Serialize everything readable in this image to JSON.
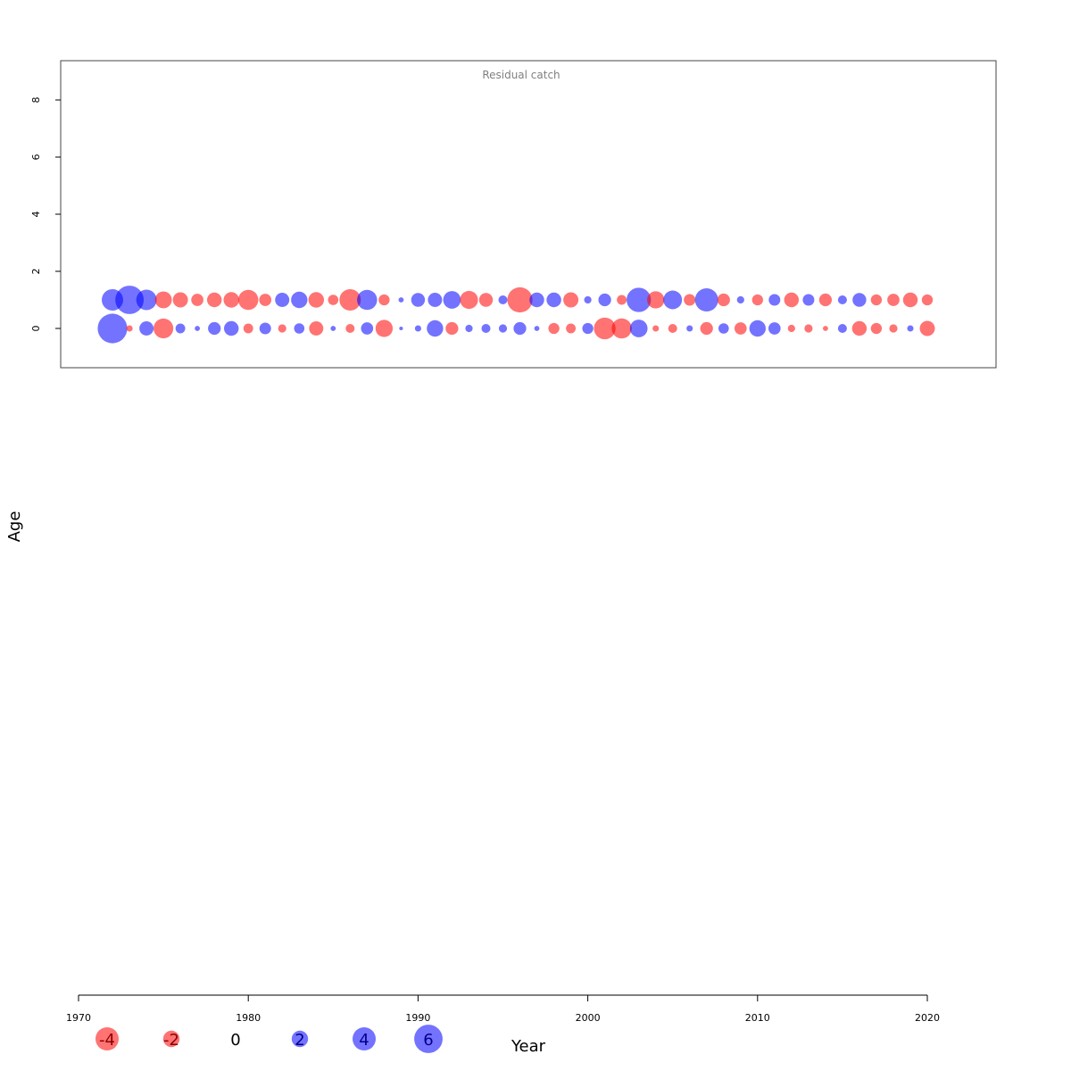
{
  "colors": {
    "positive": "#0000ff",
    "negative": "#ff0000",
    "bubble_opacity": 0.55
  },
  "chart_data": {
    "type": "scatter",
    "subtype": "bubble",
    "xlabel": "Year",
    "ylabel": "Age",
    "xlim": [
      1969,
      2024
    ],
    "ylim": [
      -1.4,
      9.4
    ],
    "x_ticks": [
      1970,
      1980,
      1990,
      2000,
      2010,
      2020
    ],
    "y_ticks": [
      0,
      2,
      4,
      6,
      8
    ],
    "ages": [
      0,
      1,
      2,
      3,
      4,
      5,
      6,
      7,
      8
    ],
    "legend": {
      "values": [
        -4,
        -2,
        0,
        2,
        4,
        6
      ],
      "labels": [
        "-4",
        "-2",
        "0",
        "2",
        "4",
        "6"
      ]
    },
    "panels": [
      {
        "title": "Residual catch",
        "years_start": 1972,
        "years_end": 2020,
        "residuals": {
          "0": [
            6.5,
            -0.3,
            1.5,
            -2.9,
            0.7,
            0.2,
            1.2,
            1.6,
            -0.7,
            1.0,
            -0.5,
            0.8,
            -1.5,
            0.2,
            -0.6,
            1.1,
            -2.2,
            0.1,
            0.3,
            2.0,
            -1.2,
            0.4,
            0.6,
            0.5,
            1.2,
            0.2,
            -0.9,
            -0.7,
            0.9,
            -3.5,
            -3.0,
            2.3,
            -0.3,
            -0.6,
            0.3,
            -1.2,
            0.8,
            -1.1,
            2.0,
            1.1,
            -0.4,
            -0.5,
            -0.2,
            0.6,
            -1.6,
            -0.9,
            -0.5,
            0.3,
            -1.7
          ],
          "1": [
            3.4,
            6.0,
            3.1,
            -2.1,
            -1.7,
            -1.1,
            -1.6,
            -1.8,
            -3.0,
            -1.1,
            1.5,
            2.0,
            -1.8,
            -0.8,
            -3.4,
            3.0,
            -0.9,
            0.2,
            1.4,
            1.5,
            2.3,
            -2.4,
            -1.4,
            0.6,
            -4.7,
            1.6,
            1.6,
            -1.7,
            0.4,
            1.2,
            -0.7,
            4.4,
            -2.2,
            2.6,
            -1.0,
            4.0,
            -1.2,
            0.4,
            -0.9,
            1.0,
            -1.6,
            1.0,
            -1.2,
            0.6,
            1.4,
            -0.9,
            -1.1,
            -1.6,
            -0.9
          ]
        }
      }
    ]
  }
}
